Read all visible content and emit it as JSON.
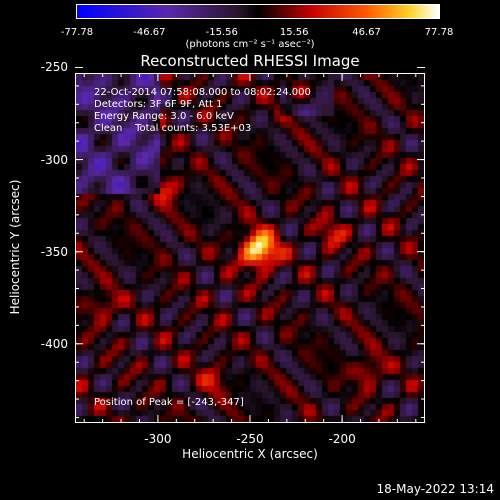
{
  "chart_data": {
    "type": "heatmap",
    "title": "Reconstructed RHESSI Image",
    "xlabel": "Heliocentric X (arcsec)",
    "ylabel": "Heliocentric Y (arcsec)",
    "xlim": [
      -345,
      -155
    ],
    "ylim": [
      -443,
      -253
    ],
    "x_ticks": [
      "-300",
      "-250",
      "-200"
    ],
    "x_tick_values": [
      -300,
      -250,
      -200
    ],
    "y_ticks": [
      "-250",
      "-300",
      "-350",
      "-400"
    ],
    "y_tick_values": [
      -250,
      -300,
      -350,
      -400
    ],
    "colorbar": {
      "ticks": [
        "-77.78",
        "-46.67",
        "-15.56",
        "15.56",
        "46.67",
        "77.78"
      ],
      "tick_values": [
        -77.78,
        -46.67,
        -15.56,
        15.56,
        46.67,
        77.78
      ],
      "label": "(photons cm⁻² s⁻¹ asec⁻²)",
      "range": [
        -77.78,
        77.78
      ]
    },
    "annotations": [
      "22-Oct-2014 07:58:08.000 to 08:02:24.000",
      "Detectors: 3F 6F 9F, Att 1",
      "Energy Range: 3.0 - 6.0 keV",
      "Clean    Total counts: 3.53E+03"
    ],
    "peak_label": "Position of Peak = [-243,-347]",
    "peak": [
      -243,
      -347
    ],
    "sources": [
      {
        "x": -245,
        "y": -349,
        "value": 77.78
      },
      {
        "x": -225,
        "y": -262,
        "value": 40
      },
      {
        "x": -295,
        "y": -315,
        "value": 30
      },
      {
        "x": -205,
        "y": -340,
        "value": 25
      },
      {
        "x": -330,
        "y": -380,
        "value": 25
      },
      {
        "x": -185,
        "y": -415,
        "value": 28
      },
      {
        "x": -270,
        "y": -420,
        "value": 22
      }
    ]
  },
  "footer": {
    "date": "18-May-2022 13:14"
  }
}
